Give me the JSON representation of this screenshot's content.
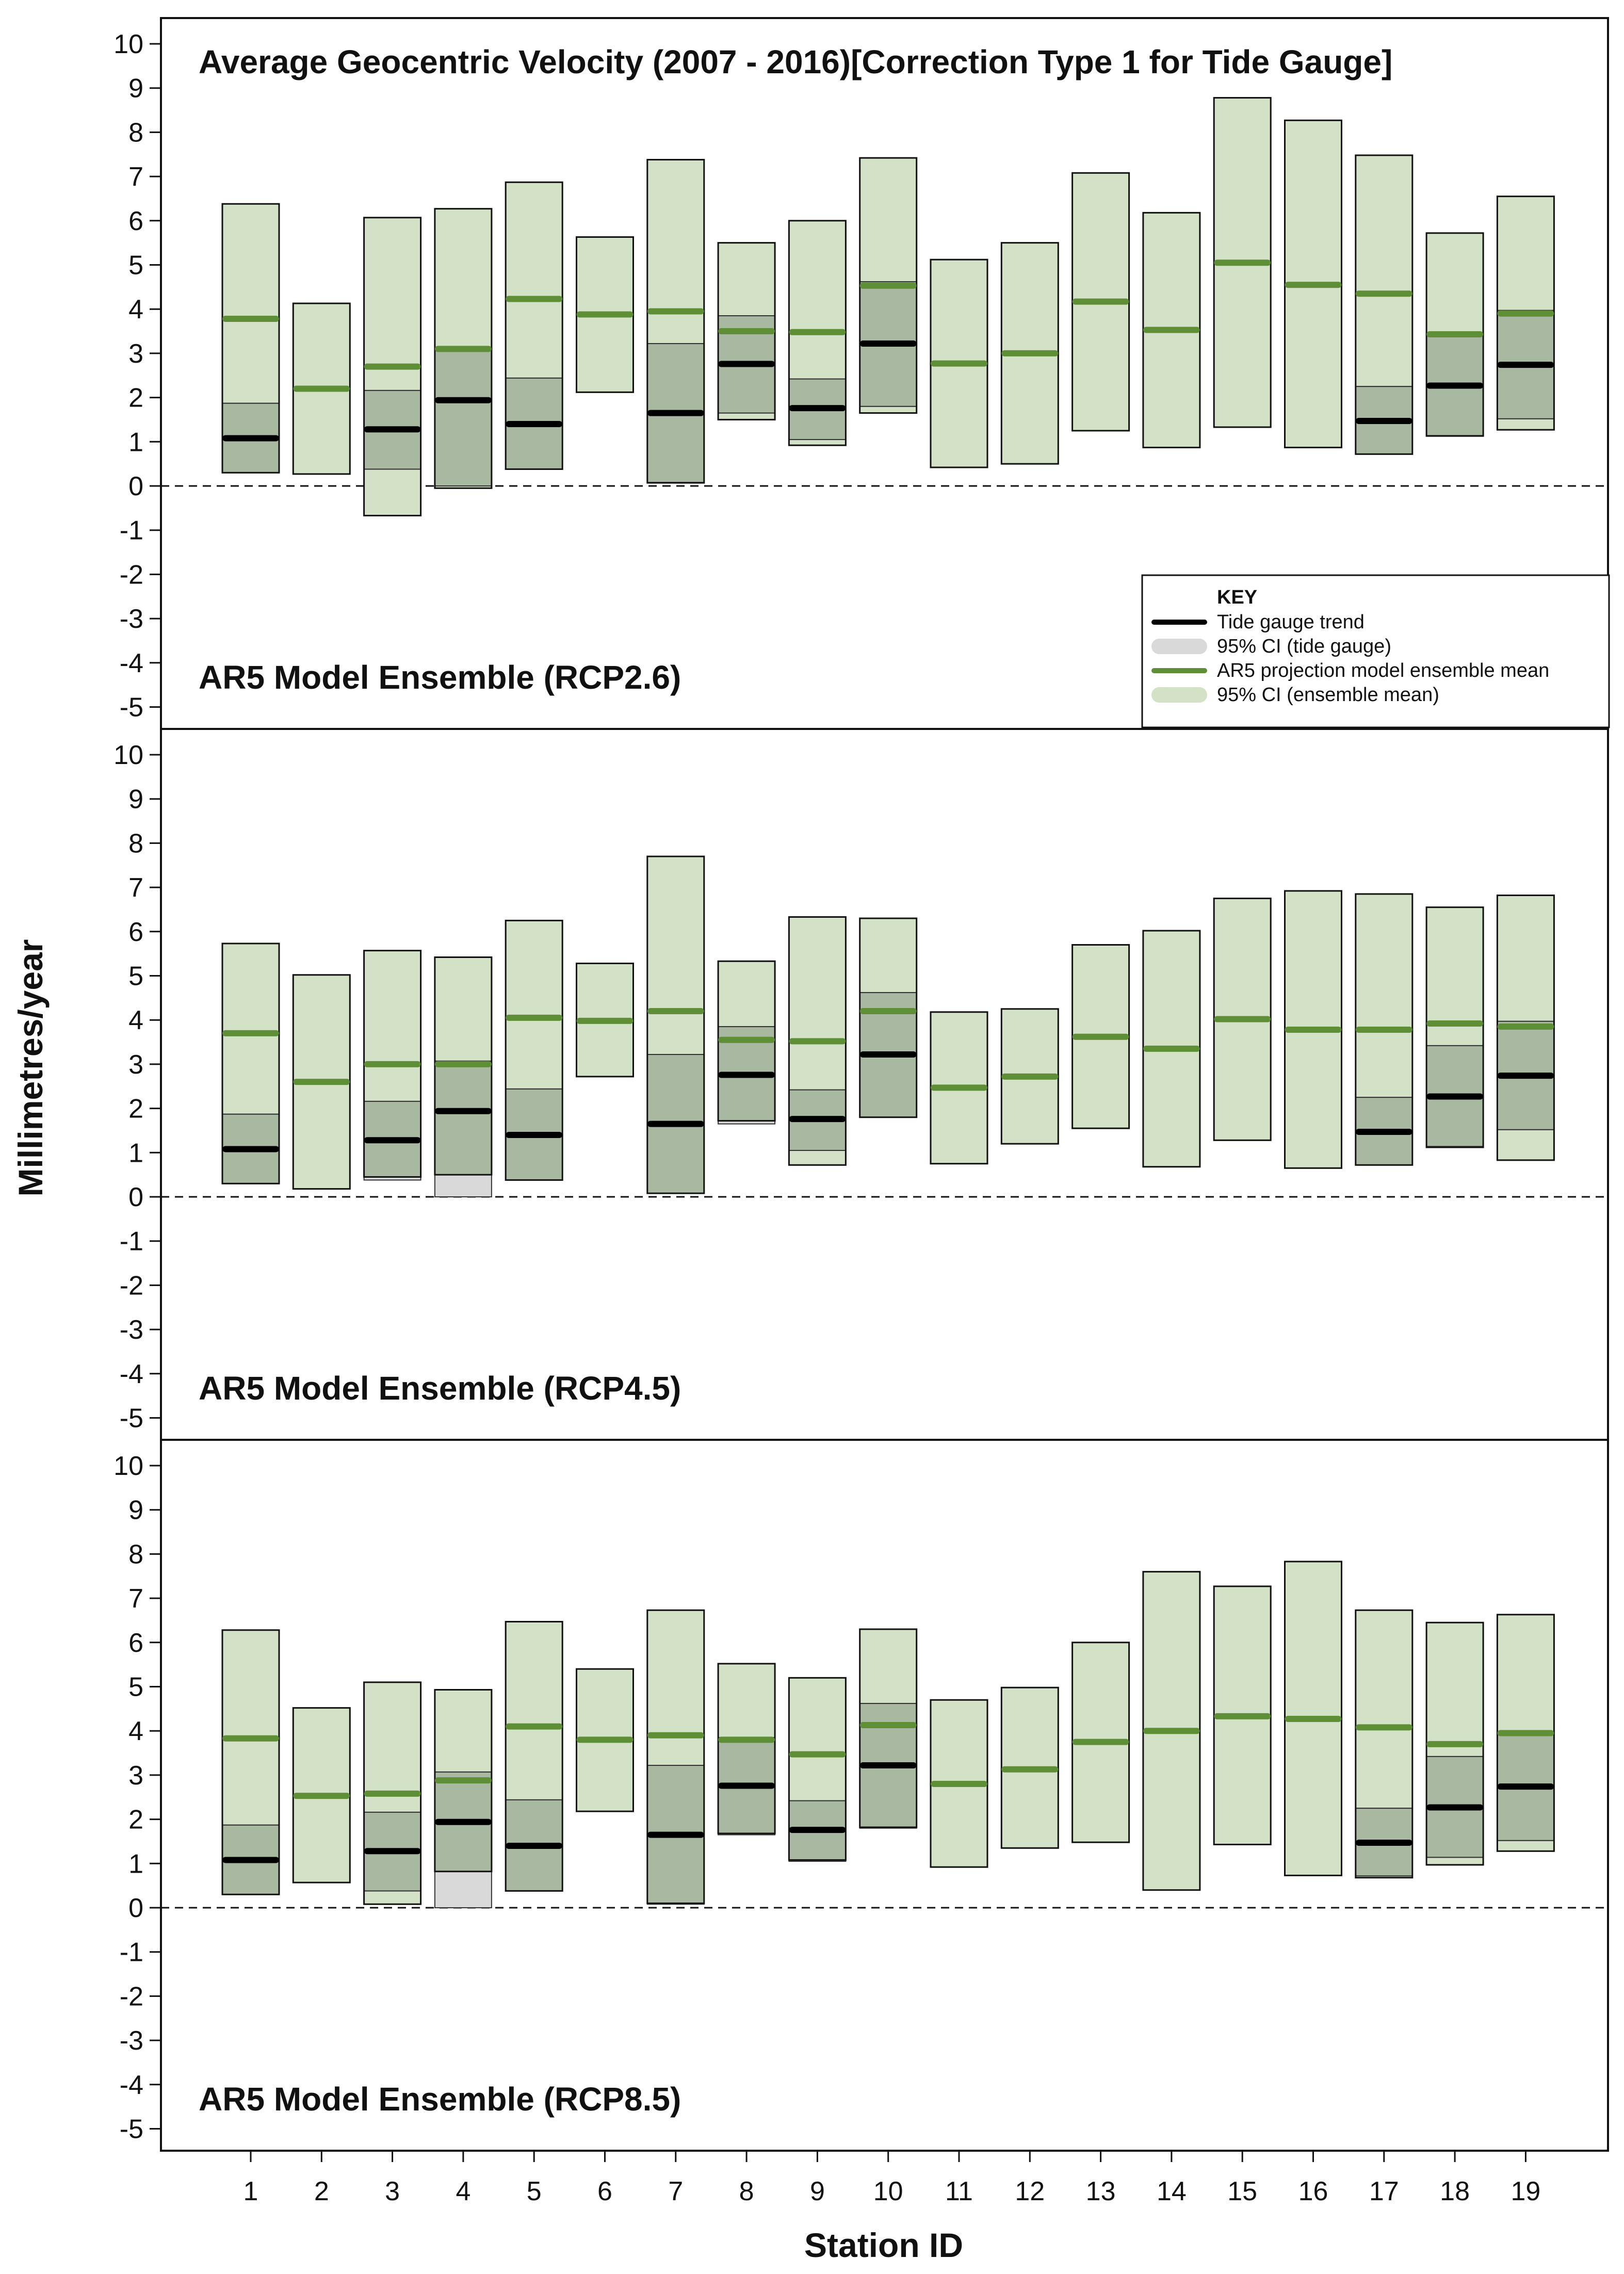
{
  "chart_data": {
    "type": "bar",
    "title": "Average Geocentric Velocity (2007 - 2016)[Correction Type 1 for Tide Gauge]",
    "xlabel": "Station ID",
    "ylabel": "Millimetres/year",
    "ylim": [
      -5,
      10
    ],
    "yticks": [
      "10",
      "9",
      "8",
      "7",
      "6",
      "5",
      "4",
      "3",
      "2",
      "1",
      "0",
      "-1",
      "-2",
      "-3",
      "-4",
      "-5"
    ],
    "categories": [
      "1",
      "2",
      "3",
      "4",
      "5",
      "6",
      "7",
      "8",
      "9",
      "10",
      "11",
      "12",
      "13",
      "14",
      "15",
      "16",
      "17",
      "18",
      "19"
    ],
    "key": {
      "heading": "KEY",
      "items": [
        {
          "label": "Tide gauge trend",
          "kind": "tg-line"
        },
        {
          "label": "95% CI (tide gauge)",
          "kind": "tg-ci"
        },
        {
          "label": "AR5 projection model ensemble mean",
          "kind": "model-line"
        },
        {
          "label": "95% CI (ensemble mean)",
          "kind": "model-ci"
        }
      ]
    },
    "colors": {
      "model_ci": "#d3e1c7",
      "tide_ci": "#d9d9d9",
      "overlap": "#a9b8a0",
      "model_mean": "#5e8e36",
      "tide_trend": "#000000"
    },
    "tide_gauge": {
      "trend": [
        1.08,
        null,
        1.28,
        1.94,
        1.4,
        null,
        1.65,
        2.76,
        1.76,
        3.22,
        null,
        null,
        null,
        null,
        null,
        null,
        1.47,
        2.27,
        2.74
      ],
      "ci_low": [
        0.3,
        null,
        0.38,
        0.0,
        0.38,
        null,
        0.08,
        1.65,
        1.05,
        1.8,
        null,
        null,
        null,
        null,
        null,
        null,
        0.72,
        1.14,
        1.52
      ],
      "ci_high": [
        1.87,
        null,
        2.16,
        3.07,
        2.44,
        null,
        3.22,
        3.85,
        2.42,
        4.62,
        null,
        null,
        null,
        null,
        null,
        null,
        2.25,
        3.42,
        3.97
      ]
    },
    "panels": [
      {
        "label": "AR5 Model Ensemble (RCP2.6)",
        "mean": [
          3.78,
          2.2,
          2.7,
          3.1,
          4.23,
          3.88,
          3.95,
          3.5,
          3.48,
          4.53,
          2.77,
          3.0,
          4.17,
          3.53,
          5.05,
          4.55,
          4.35,
          3.43,
          3.9
        ],
        "ci_low": [
          0.3,
          0.27,
          -0.67,
          -0.05,
          0.38,
          2.12,
          0.07,
          1.5,
          0.92,
          1.65,
          0.42,
          0.5,
          1.25,
          0.87,
          1.33,
          0.87,
          0.72,
          1.13,
          1.27
        ],
        "ci_high": [
          6.38,
          4.13,
          6.07,
          6.27,
          6.87,
          5.63,
          7.38,
          5.5,
          6.0,
          7.42,
          5.12,
          5.5,
          7.08,
          6.18,
          8.78,
          8.27,
          7.48,
          5.72,
          6.55
        ]
      },
      {
        "label": "AR5 Model Ensemble (RCP4.5)",
        "mean": [
          3.7,
          2.6,
          3.0,
          3.0,
          4.05,
          3.98,
          4.2,
          3.55,
          3.52,
          4.2,
          2.47,
          2.72,
          3.62,
          3.35,
          4.02,
          3.78,
          3.78,
          3.92,
          3.85
        ],
        "ci_low": [
          0.3,
          0.18,
          0.45,
          0.5,
          0.38,
          2.72,
          0.08,
          1.72,
          0.72,
          1.8,
          0.75,
          1.2,
          1.55,
          0.68,
          1.28,
          0.65,
          0.72,
          1.12,
          0.83
        ],
        "ci_high": [
          5.73,
          5.02,
          5.57,
          5.42,
          6.25,
          5.28,
          7.7,
          5.33,
          6.33,
          6.3,
          4.18,
          4.25,
          5.7,
          6.02,
          6.75,
          6.92,
          6.85,
          6.55,
          6.82
        ]
      },
      {
        "label": "AR5 Model Ensemble (RCP8.5)",
        "mean": [
          3.83,
          2.53,
          2.58,
          2.88,
          4.1,
          3.8,
          3.9,
          3.8,
          3.47,
          4.13,
          2.8,
          3.13,
          3.75,
          4.0,
          4.33,
          4.27,
          4.08,
          3.7,
          3.95
        ],
        "ci_low": [
          0.3,
          0.57,
          0.08,
          0.82,
          0.38,
          2.18,
          0.1,
          1.68,
          1.08,
          1.82,
          0.92,
          1.35,
          1.48,
          0.4,
          1.43,
          0.73,
          0.68,
          0.97,
          1.28
        ],
        "ci_high": [
          6.28,
          4.52,
          5.1,
          4.93,
          6.47,
          5.4,
          6.73,
          5.52,
          5.2,
          6.3,
          4.7,
          4.98,
          6.0,
          7.6,
          7.27,
          7.83,
          6.73,
          6.45,
          6.63
        ]
      }
    ]
  }
}
